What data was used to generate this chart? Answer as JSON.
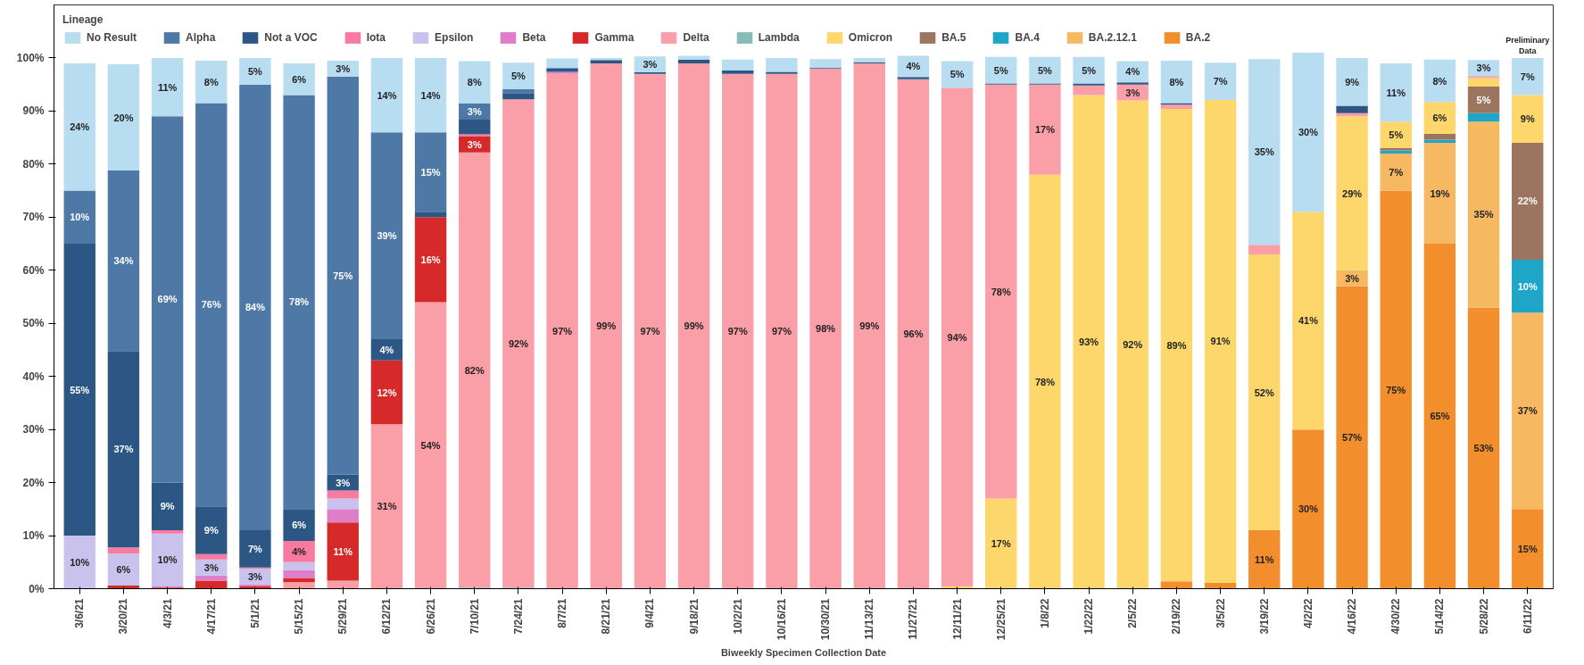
{
  "chart_data": {
    "type": "bar",
    "stacked": true,
    "xlabel": "Biweekly Specimen Collection Date",
    "legend_title": "Lineage",
    "legend": "top left",
    "grid": false,
    "categories": [
      "3/6/21",
      "3/20/21",
      "4/3/21",
      "4/17/21",
      "5/1/21",
      "5/15/21",
      "5/29/21",
      "6/12/21",
      "6/26/21",
      "7/10/21",
      "7/24/21",
      "8/7/21",
      "8/21/21",
      "9/4/21",
      "9/18/21",
      "10/2/21",
      "10/16/21",
      "10/30/21",
      "11/13/21",
      "11/27/21",
      "12/11/21",
      "12/25/21",
      "1/8/22",
      "1/22/22",
      "2/5/22",
      "2/19/22",
      "3/5/22",
      "3/19/22",
      "4/2/22",
      "4/16/22",
      "4/30/22",
      "5/14/22",
      "5/28/22",
      "6/11/22"
    ],
    "ylim": [
      0,
      110
    ],
    "yticks": [
      {
        "value": 0,
        "label": "0%"
      },
      {
        "value": 10,
        "label": "10%"
      },
      {
        "value": 20,
        "label": "20%"
      },
      {
        "value": 30,
        "label": "30%"
      },
      {
        "value": 40,
        "label": "40%"
      },
      {
        "value": 50,
        "label": "50%"
      },
      {
        "value": 60,
        "label": "60%"
      },
      {
        "value": 70,
        "label": "70%"
      },
      {
        "value": 80,
        "label": "80%"
      },
      {
        "value": 90,
        "label": "90%"
      },
      {
        "value": 100,
        "label": "100%"
      }
    ],
    "annotations": [
      {
        "text": "Preliminary Data",
        "x": "6/11/22",
        "y": 100
      }
    ],
    "series": [
      {
        "name": "BA.2",
        "color": "#f28e2b",
        "values": [
          null,
          null,
          null,
          null,
          null,
          null,
          null,
          null,
          null,
          null,
          null,
          null,
          null,
          null,
          null,
          null,
          null,
          null,
          null,
          null,
          null,
          null,
          null,
          null,
          null,
          1.4,
          1.1,
          11,
          30,
          57,
          75,
          65,
          53,
          15
        ],
        "value_labels": [
          null,
          null,
          null,
          null,
          null,
          null,
          null,
          null,
          null,
          null,
          null,
          null,
          null,
          null,
          null,
          null,
          null,
          null,
          null,
          null,
          null,
          null,
          null,
          null,
          null,
          null,
          null,
          "11%",
          "30%",
          "57%",
          "75%",
          "65%",
          "53%",
          "15%"
        ]
      },
      {
        "name": "BA.2.12.1",
        "color": "#f6b962",
        "values": [
          null,
          null,
          null,
          null,
          null,
          null,
          null,
          null,
          null,
          null,
          null,
          null,
          null,
          null,
          null,
          null,
          null,
          null,
          null,
          null,
          null,
          null,
          null,
          null,
          null,
          null,
          null,
          null,
          null,
          3,
          7,
          19,
          35,
          37
        ],
        "value_labels": [
          null,
          null,
          null,
          null,
          null,
          null,
          null,
          null,
          null,
          null,
          null,
          null,
          null,
          null,
          null,
          null,
          null,
          null,
          null,
          null,
          null,
          null,
          null,
          null,
          null,
          null,
          null,
          null,
          null,
          "3%",
          "7%",
          "19%",
          "35%",
          "37%"
        ]
      },
      {
        "name": "BA.4",
        "color": "#1ea5c8",
        "values": [
          null,
          null,
          null,
          null,
          null,
          null,
          null,
          null,
          null,
          null,
          null,
          null,
          null,
          null,
          null,
          null,
          null,
          null,
          null,
          null,
          null,
          null,
          null,
          null,
          null,
          null,
          null,
          null,
          null,
          null,
          0.6,
          0.6,
          1.6,
          10
        ],
        "value_labels": [
          null,
          null,
          null,
          null,
          null,
          null,
          null,
          null,
          null,
          null,
          null,
          null,
          null,
          null,
          null,
          null,
          null,
          null,
          null,
          null,
          null,
          null,
          null,
          null,
          null,
          null,
          null,
          null,
          null,
          null,
          null,
          null,
          null,
          "10%"
        ]
      },
      {
        "name": "BA.5",
        "color": "#9c7560",
        "values": [
          null,
          null,
          null,
          null,
          null,
          null,
          null,
          null,
          null,
          null,
          null,
          null,
          null,
          null,
          null,
          null,
          null,
          null,
          null,
          null,
          null,
          null,
          null,
          null,
          null,
          null,
          null,
          null,
          null,
          null,
          0.4,
          1.1,
          5,
          22
        ],
        "value_labels": [
          null,
          null,
          null,
          null,
          null,
          null,
          null,
          null,
          null,
          null,
          null,
          null,
          null,
          null,
          null,
          null,
          null,
          null,
          null,
          null,
          null,
          null,
          null,
          null,
          null,
          null,
          null,
          null,
          null,
          null,
          null,
          null,
          "5%",
          "22%"
        ]
      },
      {
        "name": "Omicron",
        "color": "#fdd76b",
        "values": [
          null,
          null,
          null,
          null,
          null,
          null,
          null,
          null,
          null,
          null,
          null,
          null,
          null,
          null,
          null,
          null,
          null,
          null,
          null,
          null,
          0.4,
          17,
          78,
          93,
          92,
          89,
          91,
          52,
          41,
          29,
          5,
          6,
          1.6,
          9
        ],
        "value_labels": [
          null,
          null,
          null,
          null,
          null,
          null,
          null,
          null,
          null,
          null,
          null,
          null,
          null,
          null,
          null,
          null,
          null,
          null,
          null,
          null,
          null,
          "17%",
          "78%",
          "93%",
          "92%",
          "89%",
          "91%",
          "52%",
          "41%",
          "29%",
          "5%",
          "6%",
          null,
          "9%"
        ]
      },
      {
        "name": "Lambda",
        "color": "#86bcb6",
        "values": [
          null,
          null,
          null,
          null,
          null,
          null,
          null,
          null,
          null,
          0.2,
          0.2,
          null,
          null,
          null,
          null,
          null,
          null,
          null,
          null,
          null,
          null,
          null,
          null,
          null,
          null,
          null,
          null,
          null,
          null,
          null,
          null,
          null,
          null,
          null
        ]
      },
      {
        "name": "Delta",
        "color": "#fa9ea8",
        "values": [
          null,
          null,
          null,
          null,
          null,
          1.2,
          1.5,
          31,
          54,
          82,
          92,
          97,
          99,
          97,
          99,
          97,
          97,
          98,
          99,
          96,
          94,
          78,
          17,
          1.8,
          3,
          0.8,
          null,
          1.8,
          null,
          0.6,
          null,
          null,
          0.4,
          null
        ],
        "value_labels": [
          null,
          null,
          null,
          null,
          null,
          null,
          null,
          "31%",
          "54%",
          "82%",
          "92%",
          "97%",
          "99%",
          "97%",
          "99%",
          "97%",
          "97%",
          "98%",
          "99%",
          "96%",
          "94%",
          "78%",
          "17%",
          null,
          "3%",
          null,
          null,
          null,
          null,
          null,
          null,
          null,
          null,
          null
        ]
      },
      {
        "name": "Gamma",
        "color": "#d62a2a",
        "values": [
          null,
          0.6,
          0.2,
          1.5,
          0.4,
          0.8,
          11,
          12,
          16,
          3,
          null,
          null,
          null,
          null,
          null,
          null,
          null,
          null,
          null,
          null,
          null,
          null,
          null,
          null,
          null,
          null,
          null,
          null,
          null,
          null,
          null,
          null,
          null,
          null
        ],
        "value_labels": [
          null,
          null,
          null,
          null,
          null,
          null,
          "11%",
          "12%",
          "16%",
          "3%",
          null,
          null,
          null,
          null,
          null,
          null,
          null,
          null,
          null,
          null,
          null,
          null,
          null,
          null,
          null,
          null,
          null,
          null,
          null,
          null,
          null,
          null,
          null,
          null
        ]
      },
      {
        "name": "Beta",
        "color": "#e07dc8",
        "values": [
          null,
          null,
          0.2,
          1,
          0.4,
          1.5,
          2.5,
          null,
          null,
          null,
          null,
          0.4,
          null,
          null,
          null,
          null,
          null,
          null,
          null,
          null,
          null,
          null,
          null,
          null,
          null,
          null,
          null,
          null,
          null,
          null,
          null,
          null,
          null,
          null
        ]
      },
      {
        "name": "Epsilon",
        "color": "#c9c2ec",
        "values": [
          10,
          6,
          10,
          3,
          3,
          1.5,
          2,
          null,
          null,
          null,
          null,
          null,
          null,
          null,
          null,
          null,
          null,
          null,
          null,
          null,
          null,
          null,
          null,
          null,
          null,
          null,
          null,
          null,
          null,
          null,
          null,
          null,
          null,
          null
        ],
        "value_labels": [
          "10%",
          "6%",
          "10%",
          "3%",
          "3%",
          null,
          null,
          null,
          null,
          null,
          null,
          null,
          null,
          null,
          null,
          null,
          null,
          null,
          null,
          null,
          null,
          null,
          null,
          null,
          null,
          null,
          null,
          null,
          null,
          null,
          null,
          null,
          null,
          null
        ]
      },
      {
        "name": "Iota",
        "color": "#f97aa0",
        "values": [
          null,
          1.2,
          0.6,
          1,
          0.2,
          4,
          1.5,
          null,
          null,
          0.4,
          null,
          null,
          null,
          null,
          null,
          null,
          null,
          null,
          null,
          null,
          null,
          null,
          null,
          null,
          null,
          null,
          null,
          null,
          null,
          null,
          null,
          null,
          null,
          null
        ],
        "value_labels": [
          null,
          null,
          null,
          null,
          null,
          "4%",
          null,
          null,
          null,
          null,
          null,
          null,
          null,
          null,
          null,
          null,
          null,
          null,
          null,
          null,
          null,
          null,
          null,
          null,
          null,
          null,
          null,
          null,
          null,
          null,
          null,
          null,
          null,
          null
        ]
      },
      {
        "name": "Not a VOC",
        "color": "#2c5784",
        "values": [
          55,
          37,
          9,
          9,
          7,
          6,
          3,
          4,
          1,
          2.8,
          1.2,
          0.7,
          0.6,
          0.3,
          0.7,
          0.7,
          0.4,
          0.2,
          0.2,
          0.4,
          null,
          0.2,
          0.2,
          0.4,
          0.4,
          0.3,
          null,
          null,
          null,
          1.4,
          null,
          null,
          null,
          null
        ],
        "value_labels": [
          "55%",
          "37%",
          "9%",
          "9%",
          "7%",
          "6%",
          "3%",
          "4%",
          null,
          null,
          null,
          null,
          null,
          null,
          null,
          null,
          null,
          null,
          null,
          null,
          null,
          null,
          null,
          null,
          null,
          null,
          null,
          null,
          null,
          null,
          null,
          null,
          null,
          null
        ]
      },
      {
        "name": "Alpha",
        "color": "#4e78a6",
        "values": [
          10,
          34,
          69,
          76,
          84,
          78,
          75,
          39,
          15,
          3,
          0.7,
          null,
          null,
          null,
          null,
          null,
          null,
          null,
          null,
          null,
          null,
          null,
          null,
          null,
          null,
          null,
          null,
          null,
          null,
          null,
          null,
          null,
          null,
          null
        ],
        "value_labels": [
          "10%",
          "34%",
          "69%",
          "76%",
          "84%",
          "78%",
          "75%",
          "39%",
          "15%",
          "3%",
          null,
          null,
          null,
          null,
          null,
          null,
          null,
          null,
          null,
          null,
          null,
          null,
          null,
          null,
          null,
          null,
          null,
          null,
          null,
          null,
          null,
          null,
          null,
          null
        ]
      },
      {
        "name": "No Result",
        "color": "#b8dcf0",
        "values": [
          24,
          20,
          11,
          8,
          5,
          6,
          3,
          14,
          14,
          8,
          5,
          1.8,
          0.4,
          3,
          0.7,
          2,
          2.6,
          1.6,
          0.8,
          4,
          5,
          5,
          5,
          5,
          4,
          8,
          7,
          35,
          30,
          9,
          11,
          8,
          3,
          7
        ],
        "value_labels": [
          "24%",
          "20%",
          "11%",
          "8%",
          "5%",
          "6%",
          "3%",
          "14%",
          "14%",
          "8%",
          "5%",
          null,
          null,
          "3%",
          null,
          null,
          null,
          null,
          null,
          "4%",
          "5%",
          "5%",
          "5%",
          "5%",
          "4%",
          "8%",
          "7%",
          "35%",
          "30%",
          "9%",
          "11%",
          "8%",
          "3%",
          "7%"
        ]
      }
    ]
  }
}
